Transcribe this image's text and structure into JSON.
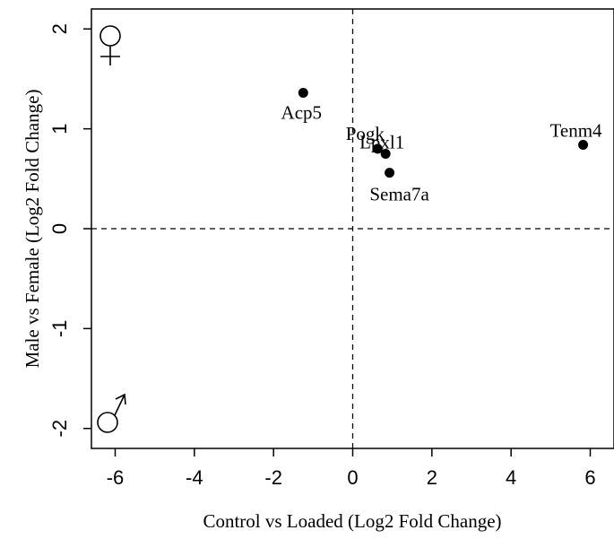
{
  "chart_data": {
    "type": "scatter",
    "title": "",
    "xlabel": "Control vs Loaded (Log2 Fold Change)",
    "ylabel": "Male vs Female (Log2 Fold Change)",
    "xlim": [
      -6.6,
      6.6
    ],
    "ylim": [
      -2.2,
      2.2
    ],
    "xticks": [
      -6,
      -4,
      -2,
      0,
      2,
      4,
      6
    ],
    "yticks": [
      -2,
      -1,
      0,
      1,
      2
    ],
    "xtick_labels": [
      "-6",
      "-4",
      "-2",
      "0",
      "2",
      "4",
      "6"
    ],
    "ytick_labels": [
      "-2",
      "-1",
      "0",
      "1",
      "2"
    ],
    "reference_lines": {
      "x": 0,
      "y": 0,
      "style": "dashed"
    },
    "grid": false,
    "points": [
      {
        "label": "Acp5",
        "x": -1.25,
        "y": 1.36
      },
      {
        "label": "Pogk",
        "x": 0.63,
        "y": 0.8
      },
      {
        "label": "Lpxl1",
        "x": 0.83,
        "y": 0.75
      },
      {
        "label": "Sema7a",
        "x": 0.93,
        "y": 0.56
      },
      {
        "label": "Tenm4",
        "x": 5.82,
        "y": 0.84
      }
    ],
    "annotations": [
      {
        "symbol": "female",
        "position": "top-left"
      },
      {
        "symbol": "male",
        "position": "bottom-left"
      }
    ]
  }
}
